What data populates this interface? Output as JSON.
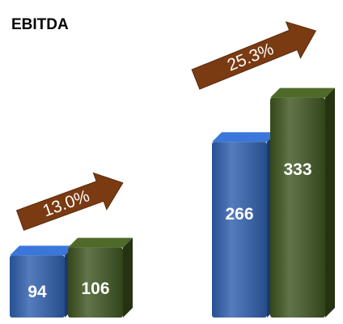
{
  "chart_data": {
    "type": "bar",
    "title": "EBITDA",
    "categories": [
      null,
      null
    ],
    "series": [
      {
        "color": "#2f5fae",
        "values": [
          94,
          266
        ]
      },
      {
        "color": "#3f5520",
        "values": [
          106,
          333
        ]
      }
    ],
    "annotations": [
      "13.0%",
      "25.3%"
    ],
    "annotation_color": "#7a3a12"
  }
}
